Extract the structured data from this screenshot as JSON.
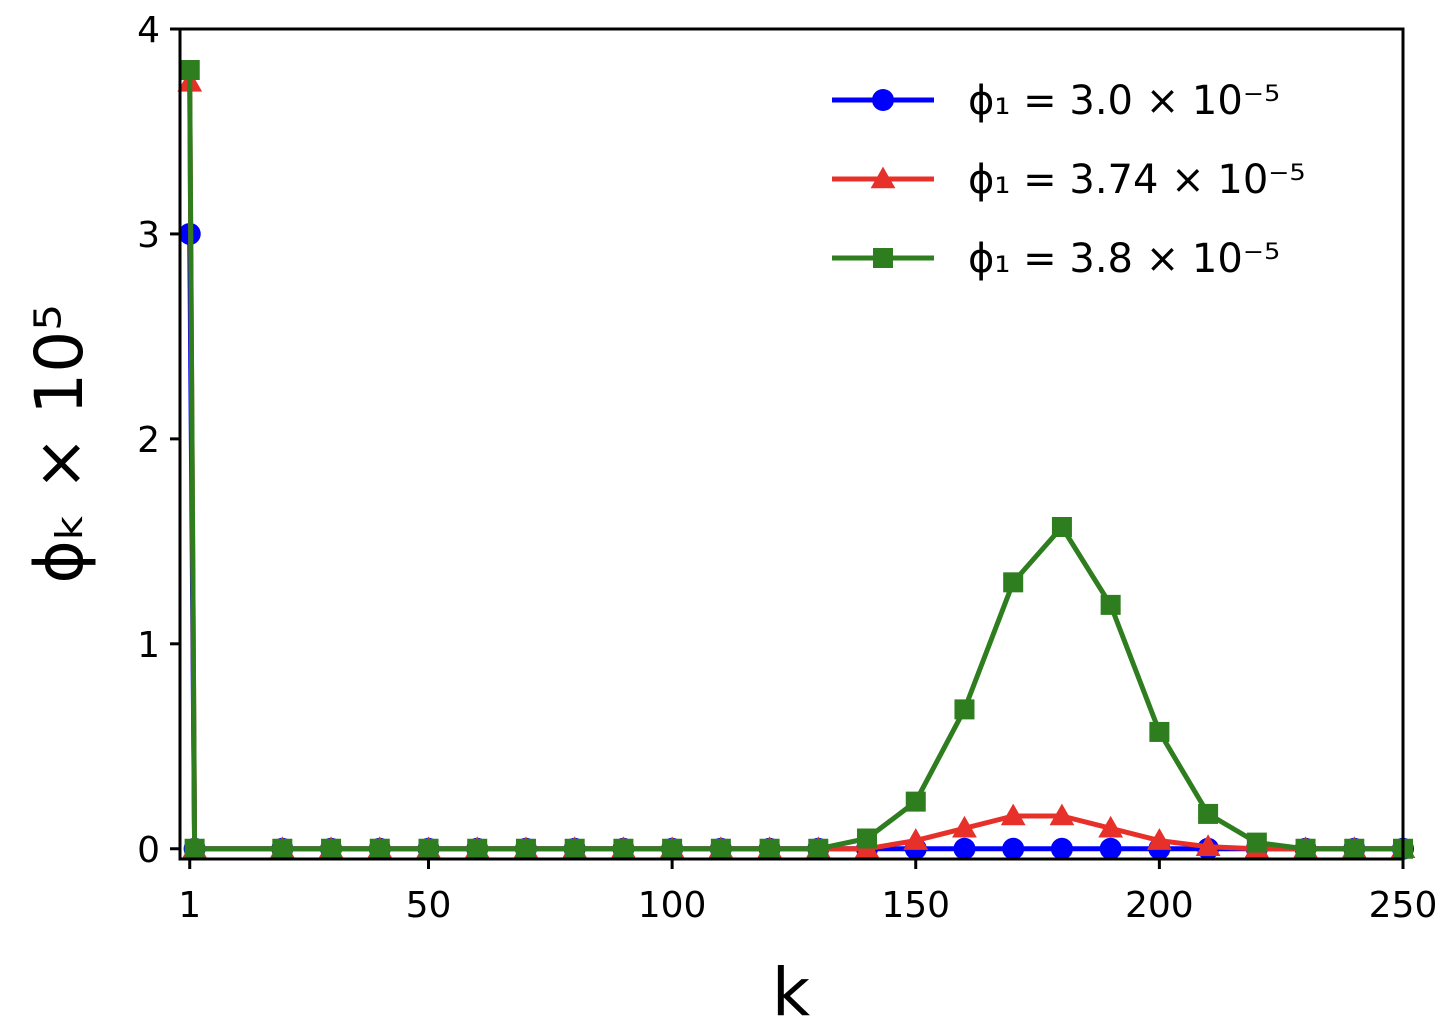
{
  "chart_data": {
    "type": "line",
    "xlabel": "k",
    "ylabel": "ϕₖ × 10⁵",
    "xlim": [
      -1,
      250
    ],
    "ylim": [
      -0.05,
      4
    ],
    "xticks": [
      1,
      50,
      100,
      150,
      200,
      250
    ],
    "yticks": [
      0,
      1,
      2,
      3,
      4
    ],
    "grid": false,
    "legend_position": "top-right",
    "x": [
      1,
      2,
      20,
      30,
      40,
      50,
      60,
      70,
      80,
      90,
      100,
      110,
      120,
      130,
      140,
      150,
      160,
      170,
      180,
      190,
      200,
      210,
      220,
      230,
      240,
      250
    ],
    "series": [
      {
        "name": "ϕ₁ = 3.0 × 10⁻⁵",
        "color": "#0000ff",
        "marker": "circle",
        "values": [
          3.0,
          0,
          0,
          0,
          0,
          0,
          0,
          0,
          0,
          0,
          0,
          0,
          0,
          0,
          0,
          0,
          0,
          0,
          0,
          0,
          0,
          0,
          0,
          0,
          0,
          0
        ]
      },
      {
        "name": "ϕ₁ = 3.74 × 10⁻⁵",
        "color": "#e8302a",
        "marker": "triangle",
        "values": [
          3.74,
          0,
          0,
          0,
          0,
          0,
          0,
          0,
          0,
          0,
          0,
          0,
          0,
          0,
          0,
          0.04,
          0.1,
          0.16,
          0.16,
          0.1,
          0.04,
          0.01,
          0,
          0,
          0,
          0
        ]
      },
      {
        "name": "ϕ₁ = 3.8 × 10⁻⁵",
        "color": "#2e7d1e",
        "marker": "square",
        "values": [
          3.8,
          0,
          0,
          0,
          0,
          0,
          0,
          0,
          0,
          0,
          0,
          0,
          0,
          0,
          0.05,
          0.23,
          0.68,
          1.3,
          1.57,
          1.19,
          0.57,
          0.17,
          0.03,
          0,
          0,
          0
        ]
      }
    ]
  }
}
